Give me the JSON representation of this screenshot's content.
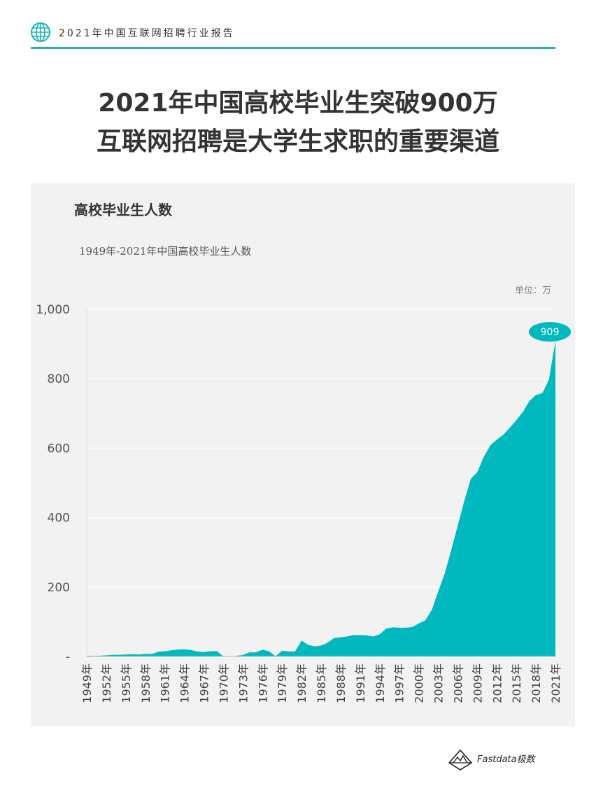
{
  "header": {
    "text": "2021年中国互联网招聘行业报告",
    "accent_color": "#19b5b8",
    "icon": "globe-icon"
  },
  "title": {
    "line1": "2021年中国高校毕业生突破900万",
    "line2": "互联网招聘是大学生求职的重要渠道"
  },
  "chart_data": {
    "type": "area",
    "title": "高校毕业生人数",
    "subtitle": "1949年-2021年中国高校毕业生人数",
    "unit": "单位：万",
    "color": "#00b9be",
    "ylim": [
      0,
      1000
    ],
    "yticks": [
      0,
      200,
      400,
      600,
      800,
      1000
    ],
    "ytick_labels": [
      "-",
      "200",
      "400",
      "600",
      "800",
      "1,000"
    ],
    "x": [
      1949,
      1950,
      1951,
      1952,
      1953,
      1954,
      1955,
      1956,
      1957,
      1958,
      1959,
      1960,
      1961,
      1962,
      1963,
      1964,
      1965,
      1966,
      1967,
      1968,
      1969,
      1970,
      1971,
      1972,
      1973,
      1974,
      1975,
      1976,
      1977,
      1978,
      1979,
      1980,
      1981,
      1982,
      1983,
      1984,
      1985,
      1986,
      1987,
      1988,
      1989,
      1990,
      1991,
      1992,
      1993,
      1994,
      1995,
      1996,
      1997,
      1998,
      1999,
      2000,
      2001,
      2002,
      2003,
      2004,
      2005,
      2006,
      2007,
      2008,
      2009,
      2010,
      2011,
      2012,
      2013,
      2014,
      2015,
      2016,
      2017,
      2018,
      2019,
      2020,
      2021
    ],
    "values": [
      2.1,
      1.8,
      1.9,
      3.2,
      4.8,
      4.7,
      5.5,
      6.3,
      5.6,
      7.2,
      7.0,
      13.6,
      15.1,
      17.7,
      20.0,
      20.4,
      18.6,
      14.1,
      12.5,
      15.0,
      15.0,
      0.1,
      0.6,
      1.7,
      4.3,
      11.9,
      11.9,
      19.4,
      14.9,
      0.6,
      16.5,
      14.7,
      14.0,
      45.7,
      33.5,
      28.7,
      31.6,
      39.3,
      53.2,
      55.3,
      57.6,
      61.4,
      61.4,
      60.4,
      57.1,
      63.7,
      80.5,
      83.9,
      82.9,
      83.0,
      84.8,
      95.0,
      103.6,
      133.7,
      187.7,
      239.1,
      306.8,
      377.5,
      447.8,
      511.9,
      531.1,
      575.4,
      608.2,
      624.7,
      638.7,
      659.4,
      680.9,
      704.2,
      735.8,
      753.0,
      758.5,
      797.2,
      909
    ],
    "xtick_labels": [
      "1949年",
      "1952年",
      "1955年",
      "1958年",
      "1961年",
      "1964年",
      "1967年",
      "1970年",
      "1973年",
      "1976年",
      "1979年",
      "1982年",
      "1985年",
      "1988年",
      "1991年",
      "1994年",
      "1997年",
      "2000年",
      "2003年",
      "2006年",
      "2009年",
      "2012年",
      "2015年",
      "2018年",
      "2021年"
    ],
    "highlight": {
      "year": 2021,
      "label": "909"
    }
  },
  "footer": {
    "brand": "Fastdata极数"
  }
}
